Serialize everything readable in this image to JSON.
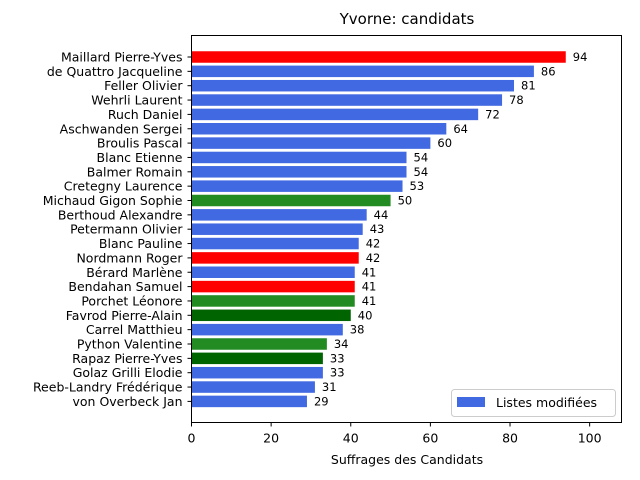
{
  "chart_data": {
    "type": "bar",
    "orientation": "horizontal",
    "title": "Yvorne: candidats",
    "xlabel": "Suffrages des Candidats",
    "ylabel": "",
    "xlim": [
      0,
      108
    ],
    "xticks": [
      0,
      20,
      40,
      60,
      80,
      100
    ],
    "grid": false,
    "legend": {
      "placement": "lower-right",
      "entries": [
        {
          "label": "Listes modifiées",
          "color": "#4169e1"
        }
      ]
    },
    "categories": [
      "Maillard Pierre-Yves",
      "de Quattro Jacqueline",
      "Feller Olivier",
      "Wehrli Laurent",
      "Ruch Daniel",
      "Aschwanden Sergei",
      "Broulis Pascal",
      "Blanc Etienne",
      "Balmer Romain",
      "Cretegny Laurence",
      "Michaud Gigon Sophie",
      "Berthoud Alexandre",
      "Petermann Olivier",
      "Blanc Pauline",
      "Nordmann Roger",
      "Bérard Marlène",
      "Bendahan Samuel",
      "Porchet Léonore",
      "Favrod Pierre-Alain",
      "Carrel Matthieu",
      "Python Valentine",
      "Rapaz Pierre-Yves",
      "Golaz Grilli Elodie",
      "Reeb-Landry Frédérique",
      "von Overbeck Jan"
    ],
    "values": [
      94,
      86,
      81,
      78,
      72,
      64,
      60,
      54,
      54,
      53,
      50,
      44,
      43,
      42,
      42,
      41,
      41,
      41,
      40,
      38,
      34,
      33,
      33,
      31,
      29
    ],
    "colors": [
      "#ff0000",
      "#4169e1",
      "#4169e1",
      "#4169e1",
      "#4169e1",
      "#4169e1",
      "#4169e1",
      "#4169e1",
      "#4169e1",
      "#4169e1",
      "#228b22",
      "#4169e1",
      "#4169e1",
      "#4169e1",
      "#ff0000",
      "#4169e1",
      "#ff0000",
      "#228b22",
      "#006400",
      "#4169e1",
      "#228b22",
      "#006400",
      "#4169e1",
      "#4169e1",
      "#4169e1"
    ]
  }
}
